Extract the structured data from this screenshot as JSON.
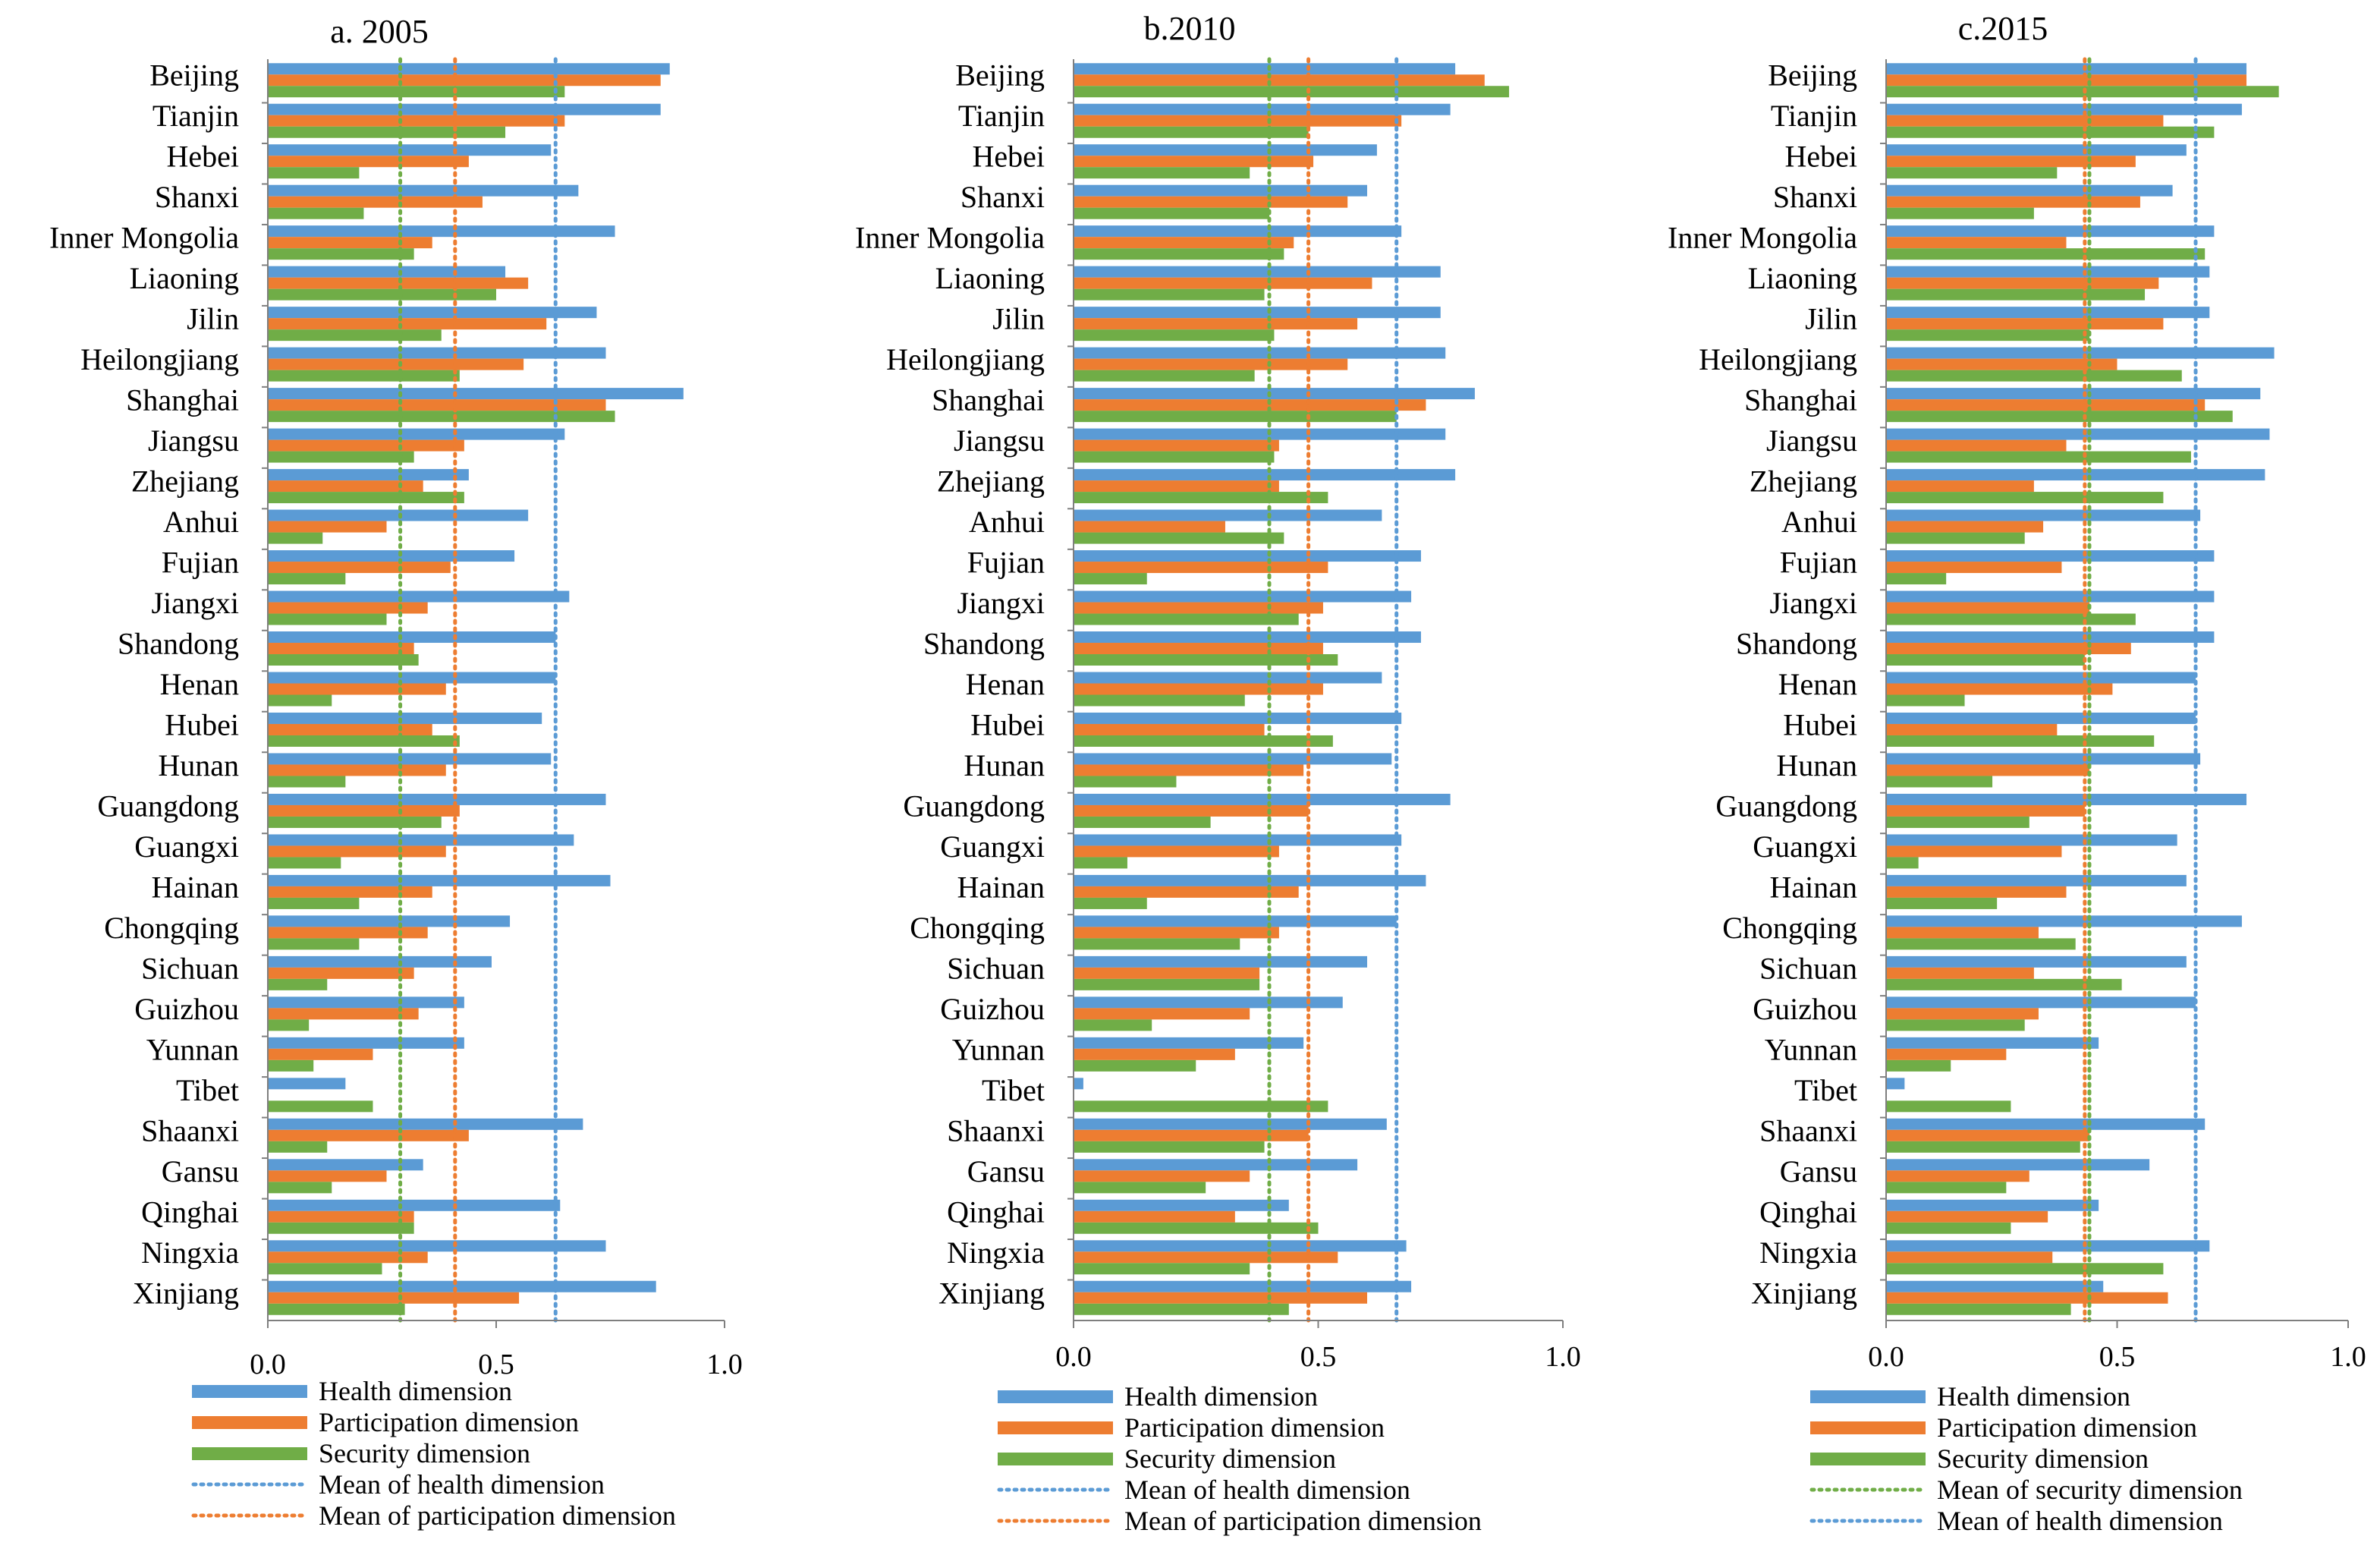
{
  "colors": {
    "health": "#5b9bd5",
    "participation": "#ed7d31",
    "security": "#70ad47",
    "axis": "#7f7f7f",
    "text": "#000000"
  },
  "chart_data": [
    {
      "type": "bar",
      "orientation": "horizontal",
      "title": "a. 2005",
      "xlim": [
        0,
        1
      ],
      "xticks": [
        "0.0",
        "0.5",
        "1.0"
      ],
      "categories": [
        "Beijing",
        "Tianjin",
        "Hebei",
        "Shanxi",
        "Inner Mongolia",
        "Liaoning",
        "Jilin",
        "Heilongjiang",
        "Shanghai",
        "Jiangsu",
        "Zhejiang",
        "Anhui",
        "Fujian",
        "Jiangxi",
        "Shandong",
        "Henan",
        "Hubei",
        "Hunan",
        "Guangdong",
        "Guangxi",
        "Hainan",
        "Chongqing",
        "Sichuan",
        "Guizhou",
        "Yunnan",
        "Tibet",
        "Shaanxi",
        "Gansu",
        "Qinghai",
        "Ningxia",
        "Xinjiang"
      ],
      "series": [
        {
          "name": "Health dimension",
          "key": "health",
          "values": [
            0.88,
            0.86,
            0.62,
            0.68,
            0.76,
            0.52,
            0.72,
            0.74,
            0.91,
            0.65,
            0.44,
            0.57,
            0.54,
            0.66,
            0.63,
            0.63,
            0.6,
            0.62,
            0.74,
            0.67,
            0.75,
            0.53,
            0.49,
            0.43,
            0.43,
            0.17,
            0.69,
            0.34,
            0.64,
            0.74,
            0.85
          ]
        },
        {
          "name": "Participation dimension",
          "key": "participation",
          "values": [
            0.86,
            0.65,
            0.44,
            0.47,
            0.36,
            0.57,
            0.61,
            0.56,
            0.74,
            0.43,
            0.34,
            0.26,
            0.4,
            0.35,
            0.32,
            0.39,
            0.36,
            0.39,
            0.42,
            0.39,
            0.36,
            0.35,
            0.32,
            0.33,
            0.23,
            0.0,
            0.44,
            0.26,
            0.32,
            0.35,
            0.55
          ]
        },
        {
          "name": "Security dimension",
          "key": "security",
          "values": [
            0.65,
            0.52,
            0.2,
            0.21,
            0.32,
            0.5,
            0.38,
            0.42,
            0.76,
            0.32,
            0.43,
            0.12,
            0.17,
            0.26,
            0.33,
            0.14,
            0.42,
            0.17,
            0.38,
            0.16,
            0.2,
            0.2,
            0.13,
            0.09,
            0.1,
            0.23,
            0.13,
            0.14,
            0.32,
            0.25,
            0.3
          ]
        }
      ],
      "means": [
        {
          "key": "security",
          "value": 0.29
        },
        {
          "key": "participation",
          "value": 0.41
        },
        {
          "key": "health",
          "value": 0.63
        }
      ],
      "legend": [
        {
          "label": "Health dimension",
          "key": "health",
          "style": "bar"
        },
        {
          "label": "Participation dimension",
          "key": "participation",
          "style": "bar"
        },
        {
          "label": "Security dimension",
          "key": "security",
          "style": "bar"
        },
        {
          "label": "Mean of health dimension",
          "key": "health",
          "style": "dotted"
        },
        {
          "label": "Mean of participation dimension",
          "key": "participation",
          "style": "dotted"
        }
      ]
    },
    {
      "type": "bar",
      "orientation": "horizontal",
      "title": "b.2010",
      "xlim": [
        0,
        1
      ],
      "xticks": [
        "0.0",
        "0.5",
        "1.0"
      ],
      "categories": [
        "Beijing",
        "Tianjin",
        "Hebei",
        "Shanxi",
        "Inner Mongolia",
        "Liaoning",
        "Jilin",
        "Heilongjiang",
        "Shanghai",
        "Jiangsu",
        "Zhejiang",
        "Anhui",
        "Fujian",
        "Jiangxi",
        "Shandong",
        "Henan",
        "Hubei",
        "Hunan",
        "Guangdong",
        "Guangxi",
        "Hainan",
        "Chongqing",
        "Sichuan",
        "Guizhou",
        "Yunnan",
        "Tibet",
        "Shaanxi",
        "Gansu",
        "Qinghai",
        "Ningxia",
        "Xinjiang"
      ],
      "series": [
        {
          "name": "Health dimension",
          "key": "health",
          "values": [
            0.78,
            0.77,
            0.62,
            0.6,
            0.67,
            0.75,
            0.75,
            0.76,
            0.82,
            0.76,
            0.78,
            0.63,
            0.71,
            0.69,
            0.71,
            0.63,
            0.67,
            0.65,
            0.77,
            0.67,
            0.72,
            0.66,
            0.6,
            0.55,
            0.47,
            0.02,
            0.64,
            0.58,
            0.44,
            0.68,
            0.69
          ]
        },
        {
          "name": "Participation dimension",
          "key": "participation",
          "values": [
            0.84,
            0.67,
            0.49,
            0.56,
            0.45,
            0.61,
            0.58,
            0.56,
            0.72,
            0.42,
            0.42,
            0.31,
            0.52,
            0.51,
            0.51,
            0.51,
            0.39,
            0.47,
            0.48,
            0.42,
            0.46,
            0.42,
            0.38,
            0.36,
            0.33,
            0.0,
            0.48,
            0.36,
            0.33,
            0.54,
            0.6
          ]
        },
        {
          "name": "Security dimension",
          "key": "security",
          "values": [
            0.89,
            0.48,
            0.36,
            0.4,
            0.43,
            0.39,
            0.41,
            0.37,
            0.66,
            0.41,
            0.52,
            0.43,
            0.15,
            0.46,
            0.54,
            0.35,
            0.53,
            0.21,
            0.28,
            0.11,
            0.15,
            0.34,
            0.38,
            0.16,
            0.25,
            0.52,
            0.39,
            0.27,
            0.5,
            0.36,
            0.44
          ]
        }
      ],
      "means": [
        {
          "key": "security",
          "value": 0.4
        },
        {
          "key": "participation",
          "value": 0.48
        },
        {
          "key": "health",
          "value": 0.66
        }
      ],
      "legend": [
        {
          "label": "Health dimension",
          "key": "health",
          "style": "bar"
        },
        {
          "label": "Participation dimension",
          "key": "participation",
          "style": "bar"
        },
        {
          "label": "Security dimension",
          "key": "security",
          "style": "bar"
        },
        {
          "label": "Mean of health dimension",
          "key": "health",
          "style": "dotted"
        },
        {
          "label": "Mean of participation dimension",
          "key": "participation",
          "style": "dotted"
        }
      ]
    },
    {
      "type": "bar",
      "orientation": "horizontal",
      "title": "c.2015",
      "xlim": [
        0,
        1
      ],
      "xticks": [
        "0.0",
        "0.5",
        "1.0"
      ],
      "categories": [
        "Beijing",
        "Tianjin",
        "Hebei",
        "Shanxi",
        "Inner Mongolia",
        "Liaoning",
        "Jilin",
        "Heilongjiang",
        "Shanghai",
        "Jiangsu",
        "Zhejiang",
        "Anhui",
        "Fujian",
        "Jiangxi",
        "Shandong",
        "Henan",
        "Hubei",
        "Hunan",
        "Guangdong",
        "Guangxi",
        "Hainan",
        "Chongqing",
        "Sichuan",
        "Guizhou",
        "Yunnan",
        "Tibet",
        "Shaanxi",
        "Gansu",
        "Qinghai",
        "Ningxia",
        "Xinjiang"
      ],
      "series": [
        {
          "name": "Health dimension",
          "key": "health",
          "values": [
            0.78,
            0.77,
            0.65,
            0.62,
            0.71,
            0.7,
            0.7,
            0.84,
            0.81,
            0.83,
            0.82,
            0.68,
            0.71,
            0.71,
            0.71,
            0.67,
            0.67,
            0.68,
            0.78,
            0.63,
            0.65,
            0.77,
            0.65,
            0.67,
            0.46,
            0.04,
            0.69,
            0.57,
            0.46,
            0.7,
            0.47
          ]
        },
        {
          "name": "Participation dimension",
          "key": "participation",
          "values": [
            0.78,
            0.6,
            0.54,
            0.55,
            0.39,
            0.59,
            0.6,
            0.5,
            0.69,
            0.39,
            0.32,
            0.34,
            0.38,
            0.44,
            0.53,
            0.49,
            0.37,
            0.44,
            0.43,
            0.38,
            0.39,
            0.33,
            0.32,
            0.33,
            0.26,
            0.0,
            0.44,
            0.31,
            0.35,
            0.36,
            0.61
          ]
        },
        {
          "name": "Security dimension",
          "key": "security",
          "values": [
            0.85,
            0.71,
            0.37,
            0.32,
            0.69,
            0.56,
            0.44,
            0.64,
            0.75,
            0.66,
            0.6,
            0.3,
            0.13,
            0.54,
            0.43,
            0.17,
            0.58,
            0.23,
            0.31,
            0.07,
            0.24,
            0.41,
            0.51,
            0.3,
            0.14,
            0.27,
            0.42,
            0.26,
            0.27,
            0.6,
            0.4
          ]
        }
      ],
      "means": [
        {
          "key": "participation",
          "value": 0.43
        },
        {
          "key": "security",
          "value": 0.44
        },
        {
          "key": "health",
          "value": 0.67
        }
      ],
      "legend": [
        {
          "label": "Health dimension",
          "key": "health",
          "style": "bar"
        },
        {
          "label": "Participation dimension",
          "key": "participation",
          "style": "bar"
        },
        {
          "label": "Security dimension",
          "key": "security",
          "style": "bar"
        },
        {
          "label": "Mean of security dimension",
          "key": "security",
          "style": "dotted"
        },
        {
          "label": "Mean of health dimension",
          "key": "health",
          "style": "dotted"
        }
      ]
    }
  ]
}
